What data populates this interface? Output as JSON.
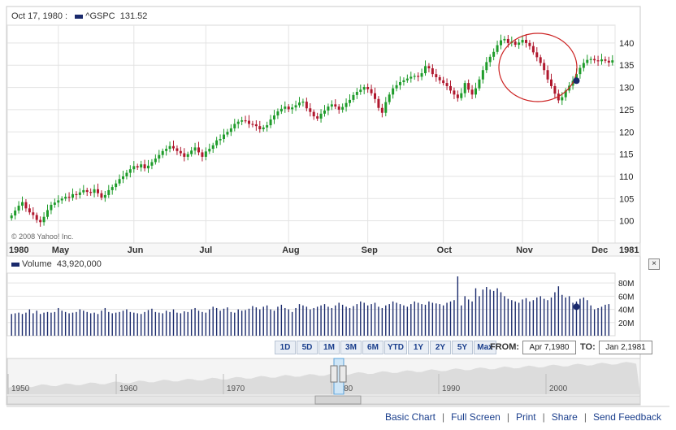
{
  "header": {
    "date": "Oct 17, 1980 :",
    "symbol": "^GSPC",
    "value": "131.52"
  },
  "volume_header": {
    "label": "Volume",
    "value": "43,920,000"
  },
  "copyright": "© 2008 Yahoo! Inc.",
  "range_buttons": [
    "1D",
    "5D",
    "1M",
    "3M",
    "6M",
    "YTD",
    "1Y",
    "2Y",
    "5Y",
    "Max"
  ],
  "from_label": "FROM:",
  "from_value": "Apr 7,1980",
  "to_label": "TO:",
  "to_value": "Jan 2,1981",
  "navigator_years": [
    "1950",
    "1960",
    "1970",
    "1980",
    "1990",
    "2000"
  ],
  "footer_links": [
    "Basic Chart",
    "Full Screen",
    "Print",
    "Share",
    "Send Feedback"
  ],
  "colors": {
    "up": "#1f9c2b",
    "down": "#b0182e",
    "volume": "#1a2a6c",
    "grid": "#e3e3e3",
    "circle": "#cc2222"
  },
  "chart_data": [
    {
      "type": "candlestick",
      "title": "",
      "ylim": [
        95,
        144
      ],
      "yticks": [
        100,
        105,
        110,
        115,
        120,
        125,
        130,
        135,
        140
      ],
      "x_tick_labels": [
        "1980",
        "May",
        "Jun",
        "Jul",
        "Aug",
        "Sep",
        "Oct",
        "Nov",
        "Dec",
        "1981"
      ],
      "grid": true,
      "closes": [
        101.2,
        102.3,
        103.4,
        104.2,
        102.8,
        101.9,
        101.3,
        100.2,
        99.7,
        100.9,
        102.4,
        103.6,
        104.1,
        104.6,
        105.0,
        105.4,
        105.2,
        106.0,
        105.8,
        106.4,
        106.9,
        106.5,
        106.3,
        107.1,
        106.2,
        105.2,
        105.8,
        106.9,
        107.6,
        108.4,
        109.4,
        110.0,
        110.8,
        111.6,
        112.3,
        112.0,
        112.7,
        111.8,
        112.4,
        113.2,
        114.0,
        114.8,
        115.7,
        116.2,
        116.8,
        116.3,
        115.7,
        115.2,
        114.4,
        115.0,
        115.8,
        116.5,
        115.4,
        114.4,
        115.6,
        116.2,
        117.0,
        118.1,
        118.4,
        119.4,
        120.0,
        120.8,
        121.8,
        122.3,
        122.6,
        122.5,
        121.8,
        121.7,
        121.3,
        120.6,
        121.0,
        121.5,
        122.8,
        123.7,
        124.6,
        125.2,
        125.7,
        125.1,
        125.5,
        126.0,
        126.6,
        126.8,
        125.3,
        124.5,
        123.5,
        123.0,
        124.1,
        124.8,
        125.7,
        126.2,
        125.7,
        125.0,
        125.6,
        126.5,
        127.2,
        128.3,
        129.0,
        129.5,
        130.1,
        129.6,
        128.7,
        127.4,
        125.4,
        124.3,
        126.7,
        128.4,
        129.8,
        130.5,
        131.2,
        131.6,
        132.0,
        132.4,
        132.6,
        132.4,
        133.2,
        134.8,
        134.3,
        133.0,
        132.3,
        131.6,
        131.0,
        130.3,
        129.3,
        128.4,
        127.6,
        128.7,
        131.0,
        129.5,
        128.4,
        129.8,
        131.8,
        133.9,
        135.7,
        136.9,
        138.0,
        139.5,
        140.6,
        140.9,
        140.0,
        140.3,
        139.6,
        140.1,
        140.7,
        140.0,
        139.3,
        137.9,
        136.8,
        135.5,
        133.9,
        131.8,
        130.3,
        128.6,
        127.1,
        127.8,
        129.3,
        130.4,
        131.5,
        133.0,
        134.4,
        135.5,
        136.2,
        136.4,
        136.1,
        135.9,
        136.3,
        136.0,
        135.6,
        136.1
      ],
      "series": [
        {
          "name": "^GSPC",
          "marker_value": 131.52
        }
      ]
    },
    {
      "type": "bar",
      "title": "",
      "ylim": [
        0,
        95
      ],
      "yticks": [
        20,
        40,
        60,
        80
      ],
      "ytick_labels": [
        "20M",
        "40M",
        "60M",
        "80M"
      ],
      "values": [
        33,
        34,
        35,
        33,
        35,
        40,
        34,
        38,
        33,
        35,
        36,
        35,
        36,
        42,
        38,
        36,
        34,
        35,
        36,
        40,
        38,
        36,
        34,
        35,
        33,
        38,
        42,
        36,
        34,
        35,
        36,
        38,
        40,
        36,
        35,
        34,
        33,
        36,
        39,
        41,
        36,
        35,
        34,
        38,
        36,
        40,
        35,
        34,
        37,
        36,
        40,
        42,
        38,
        36,
        35,
        40,
        44,
        42,
        38,
        41,
        43,
        36,
        35,
        40,
        38,
        39,
        41,
        45,
        43,
        40,
        44,
        46,
        40,
        38,
        44,
        47,
        42,
        40,
        36,
        42,
        48,
        46,
        44,
        40,
        42,
        44,
        46,
        48,
        44,
        42,
        46,
        50,
        47,
        44,
        42,
        45,
        48,
        52,
        50,
        46,
        48,
        50,
        44,
        42,
        46,
        48,
        52,
        50,
        48,
        46,
        44,
        48,
        52,
        50,
        48,
        47,
        52,
        50,
        49,
        48,
        46,
        50,
        52,
        54,
        90,
        46,
        60,
        55,
        52,
        72,
        60,
        70,
        74,
        70,
        68,
        72,
        66,
        60,
        56,
        54,
        52,
        50,
        55,
        57,
        52,
        54,
        58,
        60,
        56,
        54,
        58,
        66,
        75,
        62,
        58,
        60,
        50,
        52,
        56,
        58,
        54,
        46,
        40,
        42,
        44,
        47,
        48
      ],
      "series": [
        {
          "name": "Volume",
          "marker_value": 43.92
        }
      ]
    }
  ]
}
